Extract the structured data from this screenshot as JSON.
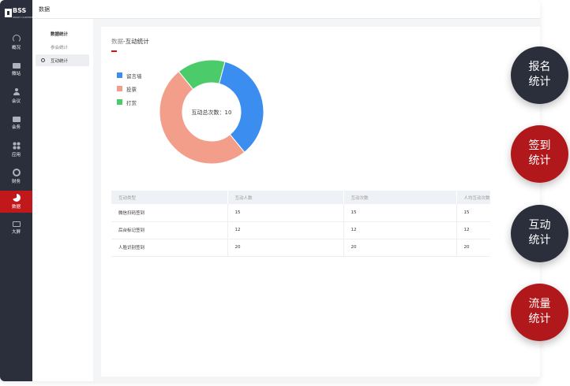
{
  "logo": {
    "text": "BSS",
    "subtext": "SMART CONFERENCE"
  },
  "nav": {
    "items": [
      {
        "label": "概况",
        "icon": "gauge-icon"
      },
      {
        "label": "微站",
        "icon": "store-icon"
      },
      {
        "label": "会议",
        "icon": "user-icon"
      },
      {
        "label": "会务",
        "icon": "briefcase-icon"
      },
      {
        "label": "应用",
        "icon": "grid-icon"
      },
      {
        "label": "财务",
        "icon": "coin-icon"
      },
      {
        "label": "数据",
        "icon": "pie-icon",
        "active": true
      },
      {
        "label": "大屏",
        "icon": "screen-icon"
      }
    ]
  },
  "topbar": {
    "title": "数据"
  },
  "subnav": {
    "group_title": "数据统计",
    "items": [
      {
        "label": "参会统计"
      },
      {
        "label": "互动统计",
        "active": true
      }
    ]
  },
  "main": {
    "breadcrumb_root": "数据",
    "breadcrumb_sep": "-",
    "breadcrumb_current": "互动统计"
  },
  "chart_data": {
    "type": "pie",
    "donut": true,
    "center_label": "互动总次数：10",
    "legend_position": "left",
    "slices": [
      {
        "name": "留言墙",
        "value": 3.5,
        "color": "#3b8ef0"
      },
      {
        "name": "投票",
        "value": 5,
        "color": "#f39e8b"
      },
      {
        "name": "打赏",
        "value": 1.5,
        "color": "#4ccb6a"
      }
    ]
  },
  "table": {
    "headers": [
      "互动类型",
      "互动人数",
      "互动次数",
      "人均互动次数"
    ],
    "rows": [
      [
        "微信扫码签到",
        "15",
        "15",
        "15"
      ],
      [
        "后台标记签到",
        "12",
        "12",
        "12"
      ],
      [
        "人脸识别签到",
        "20",
        "20",
        "20"
      ]
    ]
  },
  "fabs": [
    {
      "line1": "报名",
      "line2": "统计",
      "color": "#2b2e3b"
    },
    {
      "line1": "签到",
      "line2": "统计",
      "color": "#b0181b"
    },
    {
      "line1": "互动",
      "line2": "统计",
      "color": "#2b2e3b"
    },
    {
      "line1": "流量",
      "line2": "统计",
      "color": "#b0181b"
    }
  ]
}
